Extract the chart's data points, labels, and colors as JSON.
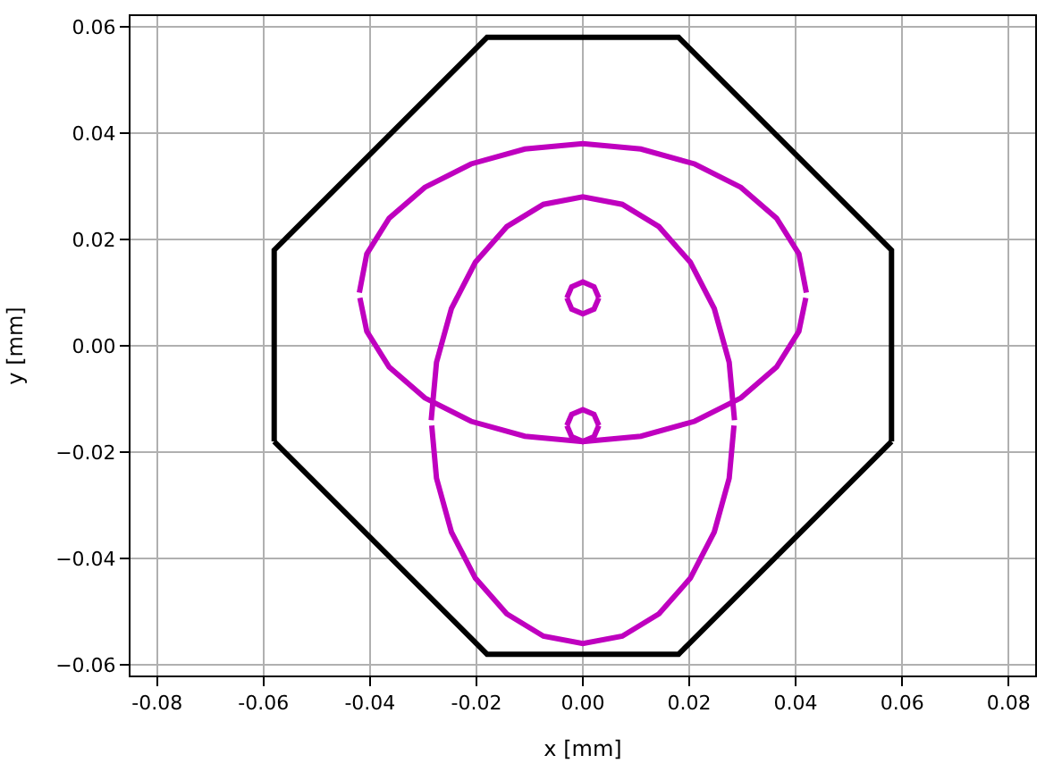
{
  "chart_data": {
    "type": "line",
    "xlabel": "x [mm]",
    "ylabel": "y [mm]",
    "xlim": [
      -0.085,
      0.085
    ],
    "ylim": [
      -0.062,
      0.062
    ],
    "xticks": [
      -0.08,
      -0.06,
      -0.04,
      -0.02,
      {
        "value": 0.0,
        "label": "0.00"
      },
      0.02,
      0.04,
      0.06,
      0.08
    ],
    "yticks": [
      {
        "value": -0.06,
        "label": "−0.06"
      },
      {
        "value": -0.04,
        "label": "−0.04"
      },
      {
        "value": -0.02,
        "label": "−0.02"
      },
      {
        "value": 0.0,
        "label": "0.00"
      },
      {
        "value": 0.02,
        "label": "0.02"
      },
      {
        "value": 0.04,
        "label": "0.04"
      },
      {
        "value": 0.06,
        "label": "0.06"
      }
    ],
    "grid": true,
    "marker": "none",
    "line_style": "solid",
    "series": [
      {
        "color": "#000000",
        "x": [
          -0.058,
          -0.058,
          -0.018,
          0.018,
          0.058,
          0.058
        ],
        "values": [
          -0.018,
          0.018,
          0.058,
          0.058,
          0.018,
          -0.018
        ]
      },
      {
        "color": "#000000",
        "x": [
          -0.058,
          -0.018,
          0.018,
          0.058
        ],
        "values": [
          -0.018,
          -0.058,
          -0.058,
          -0.018
        ]
      },
      {
        "color": "#bf00bf",
        "x": [
          -0.042,
          -0.0406,
          -0.0364,
          -0.0297,
          -0.021,
          -0.0109,
          0,
          0.0109,
          0.021,
          0.0297,
          0.0364,
          0.0406,
          0.042
        ],
        "values": [
          0.01,
          0.0173,
          0.024,
          0.0298,
          0.0342,
          0.037,
          0.038,
          0.037,
          0.0342,
          0.0298,
          0.024,
          0.0173,
          0.01
        ]
      },
      {
        "color": "#bf00bf",
        "x": [
          -0.0419,
          -0.0406,
          -0.0364,
          -0.0297,
          -0.021,
          -0.0109,
          0,
          0.0109,
          0.021,
          0.0297,
          0.0364,
          0.0406,
          0.0419
        ],
        "values": [
          0.009,
          0.0027,
          -0.004,
          -0.0098,
          -0.0142,
          -0.017,
          -0.018,
          -0.017,
          -0.0142,
          -0.0098,
          -0.004,
          0.0027,
          0.009
        ]
      },
      {
        "color": "#bf00bf",
        "x": [
          -0.0285,
          -0.0275,
          -0.0247,
          -0.0202,
          -0.0143,
          -0.0074,
          0,
          0.0074,
          0.0143,
          0.0202,
          0.0247,
          0.0275,
          0.0285
        ],
        "values": [
          -0.014,
          -0.0031,
          0.007,
          0.0157,
          0.0224,
          0.0266,
          0.028,
          0.0266,
          0.0224,
          0.0157,
          0.007,
          -0.0031,
          -0.014
        ]
      },
      {
        "color": "#bf00bf",
        "x": [
          -0.0284,
          -0.0275,
          -0.0247,
          -0.0202,
          -0.0143,
          -0.0074,
          0,
          0.0074,
          0.0143,
          0.0202,
          0.0247,
          0.0275,
          0.0284
        ],
        "values": [
          -0.015,
          -0.0249,
          -0.035,
          -0.0437,
          -0.0504,
          -0.0546,
          -0.056,
          -0.0546,
          -0.0504,
          -0.0437,
          -0.035,
          -0.0249,
          -0.015
        ]
      },
      {
        "color": "#bf00bf",
        "x": [
          -0.003,
          -0.0021,
          0,
          0.0021,
          0.003
        ],
        "values": [
          0.009,
          0.0111,
          0.012,
          0.0111,
          0.009
        ]
      },
      {
        "color": "#bf00bf",
        "x": [
          -0.003,
          -0.0021,
          0,
          0.0021,
          0.003
        ],
        "values": [
          0.009,
          0.0069,
          0.006,
          0.0069,
          0.009
        ]
      },
      {
        "color": "#bf00bf",
        "x": [
          -0.003,
          -0.0021,
          0,
          0.0021,
          0.003
        ],
        "values": [
          -0.015,
          -0.0129,
          -0.012,
          -0.0129,
          -0.015
        ]
      },
      {
        "color": "#bf00bf",
        "x": [
          -0.003,
          -0.0021,
          0,
          0.0021,
          0.003
        ],
        "values": [
          -0.015,
          -0.0171,
          -0.018,
          -0.0171,
          -0.015
        ]
      }
    ]
  }
}
